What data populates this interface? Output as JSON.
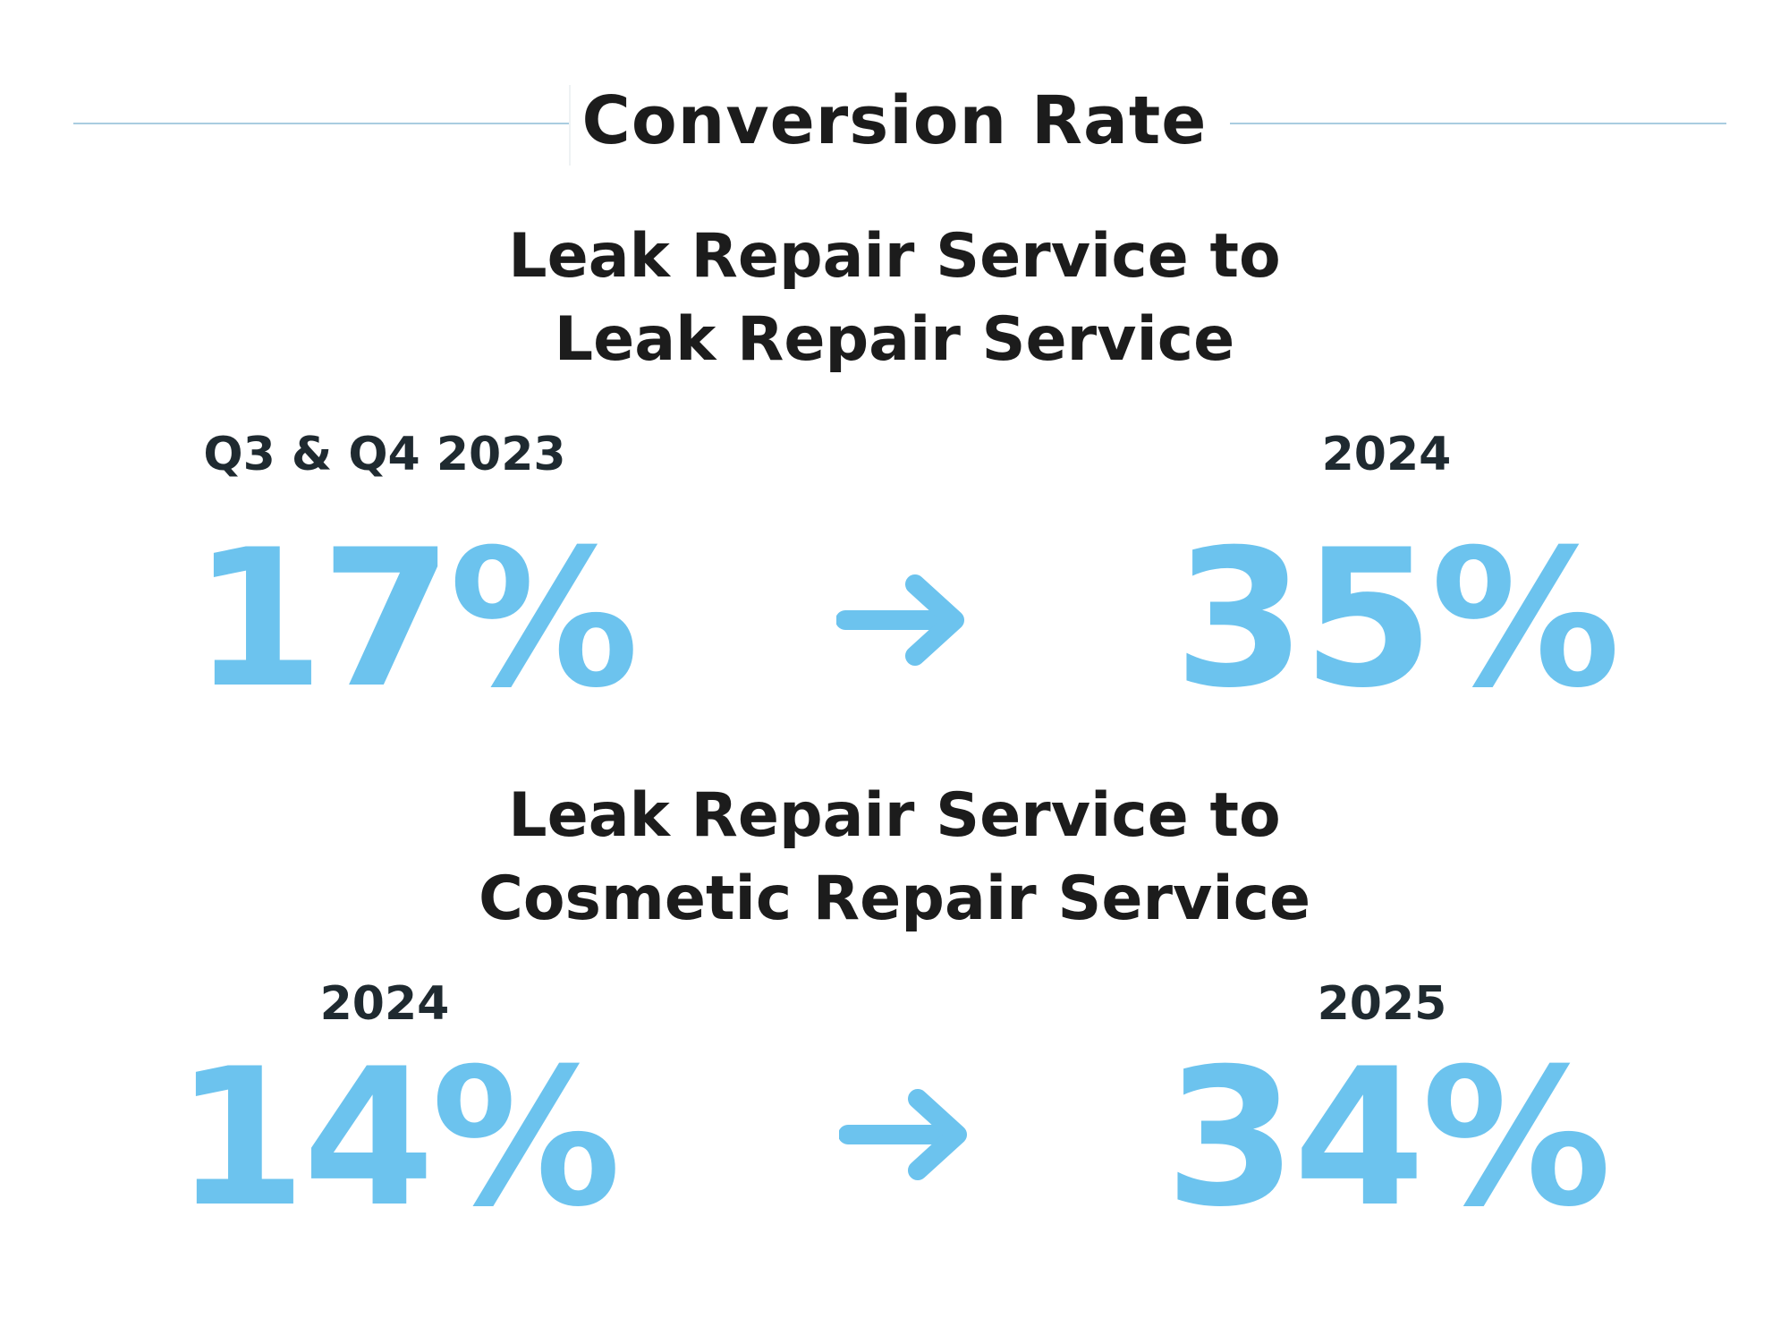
{
  "header": {
    "title": "Conversion Rate"
  },
  "sections": [
    {
      "title_line1": "Leak Repair Service to",
      "title_line2": "Leak Repair Service",
      "from": {
        "period": "Q3 & Q4 2023",
        "value": "17%"
      },
      "to": {
        "period": "2024",
        "value": "35%"
      },
      "arrow_icon": "arrow-right-icon"
    },
    {
      "title_line1": "Leak Repair Service to",
      "title_line2": "Cosmetic Repair Service",
      "from": {
        "period": "2024",
        "value": "14%"
      },
      "to": {
        "period": "2025",
        "value": "34%"
      },
      "arrow_icon": "arrow-right-icon"
    }
  ],
  "colors": {
    "accent": "#6cc3ee",
    "text": "#1c1c1c",
    "rule": "#a9cde0"
  }
}
